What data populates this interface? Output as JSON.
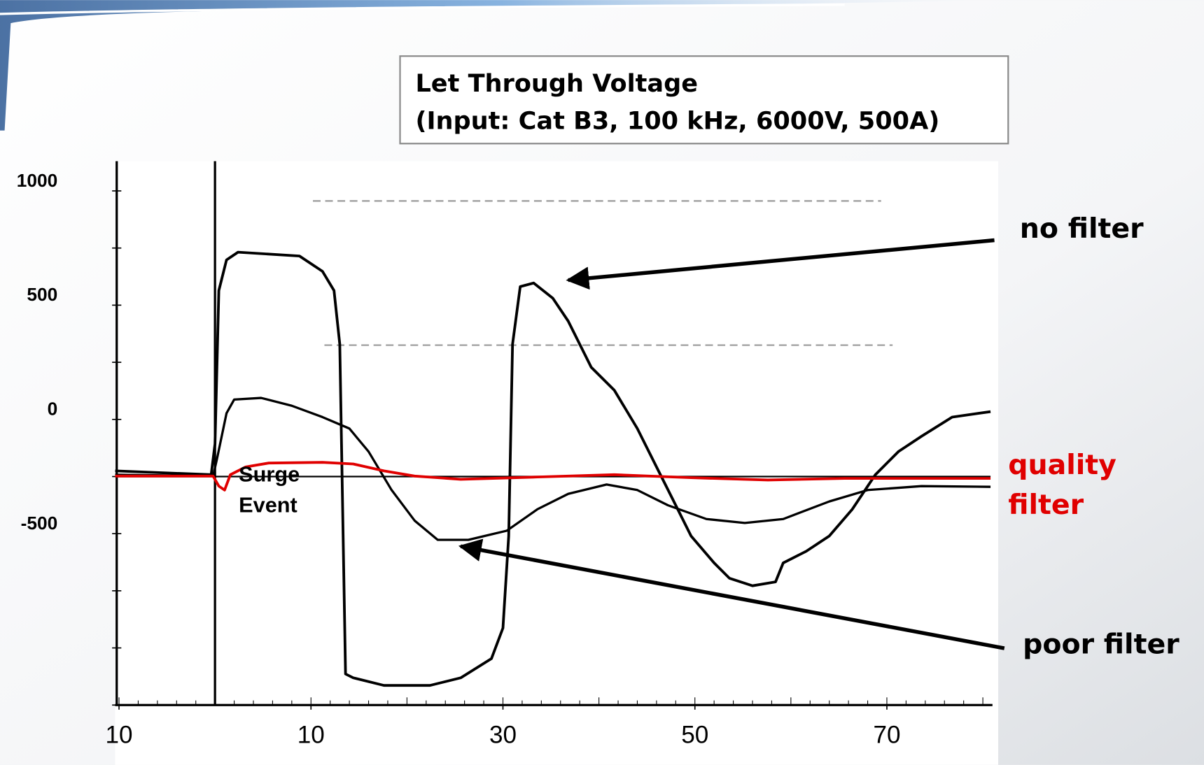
{
  "chart_data": {
    "type": "line",
    "title_lines": [
      "Let Through Voltage",
      "(Input: Cat B3, 100 kHz, 6000V, 500A)"
    ],
    "xlim": [
      -10,
      81
    ],
    "xticks": [
      {
        "value": -10,
        "label": "10"
      },
      10,
      30,
      50,
      70
    ],
    "x_minor_step": 2,
    "ylim": [
      -1250,
      1130
    ],
    "yticks": [
      -500,
      0,
      500,
      1000
    ],
    "y_minor_ticks": [
      -1250,
      -1000,
      -750,
      -500,
      -250,
      0,
      250,
      500,
      750,
      1000
    ],
    "reference_lines": [
      {
        "y": 956,
        "x": [
          10.2,
          69.4
        ],
        "color": "#999999"
      },
      {
        "y": 325,
        "x": [
          11.4,
          70.6
        ],
        "color": "#999999"
      }
    ],
    "baseline": {
      "y": -250,
      "x": [
        -10.4,
        80.8
      ]
    },
    "event_line": {
      "x": 0,
      "label_lines": [
        "Surge",
        "Event"
      ]
    },
    "series": [
      {
        "name": "no filter",
        "color": "#000000",
        "width": 3.5,
        "x": [
          -10.4,
          -0.4,
          0,
          0.4,
          1.2,
          2.4,
          8.8,
          11.2,
          12.4,
          13.0,
          13.6,
          14.4,
          17.6,
          22.4,
          25.6,
          28.8,
          30,
          30.6,
          31,
          31.8,
          33.2,
          35.2,
          36.8,
          39.2,
          41.6,
          44,
          46,
          47.6,
          49.6,
          52,
          53.6,
          56,
          58.4,
          59.2,
          61.6,
          64,
          66.4,
          68.8,
          71.2,
          73.6,
          76.8,
          80.8
        ],
        "values": [
          -225,
          -242,
          -107,
          564,
          698,
          732,
          715,
          648,
          564,
          329,
          -1114,
          -1131,
          -1164,
          -1164,
          -1131,
          -1047,
          -913,
          -510,
          329,
          581,
          597,
          530,
          430,
          228,
          128,
          -40,
          -208,
          -342,
          -510,
          -628,
          -695,
          -728,
          -711,
          -628,
          -577,
          -510,
          -393,
          -242,
          -141,
          -74,
          10,
          34
        ]
      },
      {
        "name": "poor filter",
        "color": "#000000",
        "width": 3,
        "x": [
          -10.4,
          -0.2,
          0.2,
          1.2,
          2,
          4.8,
          8,
          11.2,
          14,
          16,
          18.4,
          20.8,
          23.2,
          26.4,
          30.4,
          33.6,
          36.8,
          40.8,
          44,
          47.2,
          51.2,
          55.2,
          59.2,
          64,
          68,
          73.6,
          80.8
        ],
        "values": [
          -242,
          -248,
          -174,
          27,
          87,
          94,
          60,
          10,
          -40,
          -141,
          -309,
          -443,
          -527,
          -527,
          -487,
          -393,
          -326,
          -285,
          -309,
          -376,
          -436,
          -453,
          -436,
          -359,
          -309,
          -292,
          -295
        ]
      },
      {
        "name": "quality filter",
        "color": "#e00000",
        "width": 3.5,
        "x": [
          -10.4,
          -0.2,
          0.4,
          1.0,
          1.6,
          3.2,
          5.6,
          11.2,
          14.4,
          17.6,
          20.8,
          25.6,
          33.6,
          41.6,
          49.6,
          57.6,
          65.6,
          80.8
        ],
        "values": [
          -248,
          -248,
          -292,
          -309,
          -242,
          -208,
          -191,
          -188,
          -195,
          -225,
          -248,
          -262,
          -252,
          -242,
          -255,
          -265,
          -258,
          -258
        ]
      }
    ]
  }
}
